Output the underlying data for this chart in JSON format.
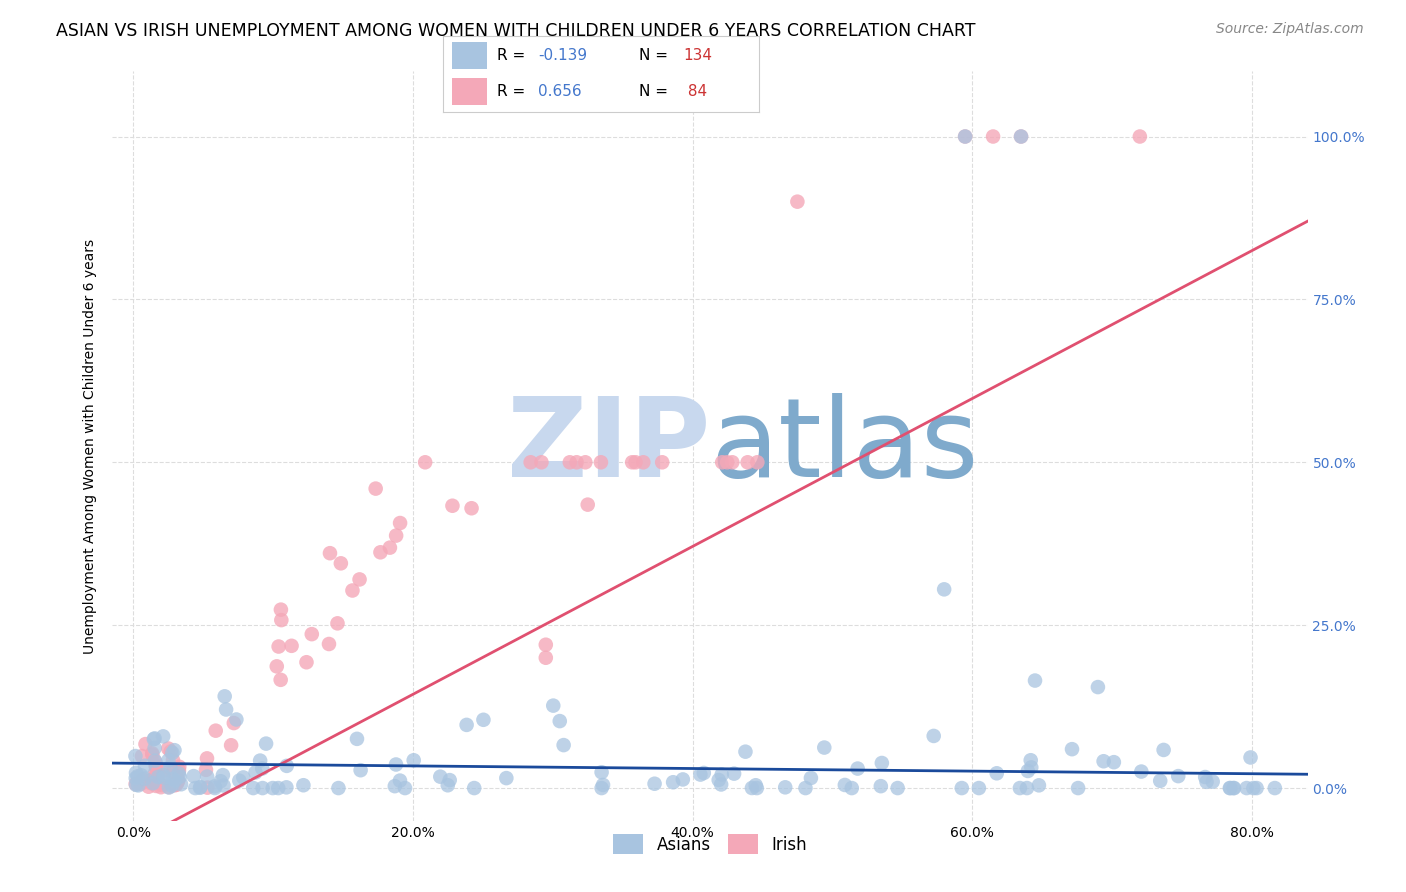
{
  "title": "ASIAN VS IRISH UNEMPLOYMENT AMONG WOMEN WITH CHILDREN UNDER 6 YEARS CORRELATION CHART",
  "source": "Source: ZipAtlas.com",
  "ylabel": "Unemployment Among Women with Children Under 6 years",
  "xlabel_ticks": [
    "0.0%",
    "20.0%",
    "40.0%",
    "60.0%",
    "80.0%"
  ],
  "xlabel_vals": [
    0.0,
    0.2,
    0.4,
    0.6,
    0.8
  ],
  "ylabel_ticks": [
    "0.0%",
    "25.0%",
    "50.0%",
    "75.0%",
    "100.0%"
  ],
  "ylabel_vals": [
    0.0,
    0.25,
    0.5,
    0.75,
    1.0
  ],
  "xlim": [
    -0.015,
    0.84
  ],
  "ylim": [
    -0.05,
    1.1
  ],
  "asian_color": "#a8c4e0",
  "irish_color": "#f4a8b8",
  "asian_line_color": "#1a4a9b",
  "irish_line_color": "#e05070",
  "asian_R": -0.139,
  "asian_N": 134,
  "irish_R": 0.656,
  "irish_N": 84,
  "watermark_zip": "ZIP",
  "watermark_atlas": "atlas",
  "watermark_color_zip": "#c8d8ee",
  "watermark_color_atlas": "#7faacc",
  "legend_label_asian": "Asians",
  "legend_label_irish": "Irish",
  "background_color": "#ffffff",
  "grid_color": "#dddddd",
  "title_fontsize": 12.5,
  "source_fontsize": 10,
  "axis_label_fontsize": 10,
  "tick_fontsize": 10,
  "right_tick_color": "#4477cc",
  "legend_R_color": "#4477cc",
  "legend_N_color": "#cc3333"
}
